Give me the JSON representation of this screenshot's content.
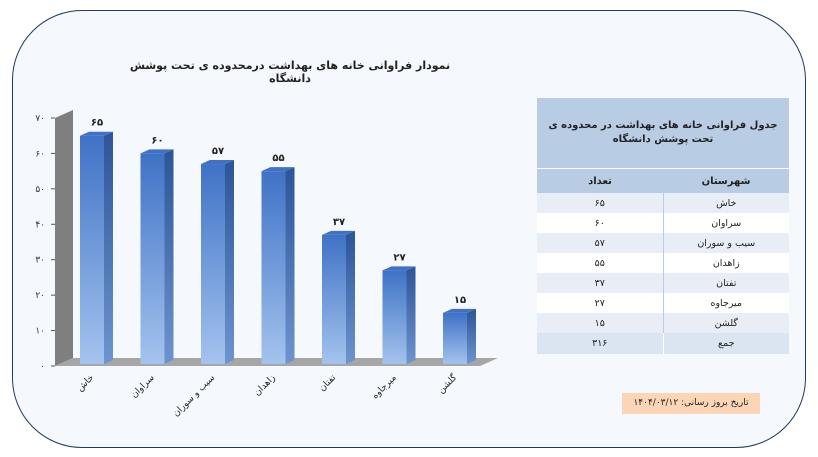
{
  "chart_data": {
    "type": "bar",
    "title": "نمودار فراوانی خانه های بهداشت درمحدوده ی تحت پوشش دانشگاه",
    "categories": [
      "خاش",
      "سراوان",
      "سیب و سوران",
      "زاهدان",
      "تفتان",
      "میرجاوه",
      "گلشن"
    ],
    "values": [
      65,
      60,
      57,
      55,
      37,
      27,
      15
    ],
    "value_labels": [
      "۶۵",
      "۶۰",
      "۵۷",
      "۵۵",
      "۳۷",
      "۲۷",
      "۱۵"
    ],
    "ylim": [
      0,
      70
    ],
    "yticks": [
      0,
      10,
      20,
      30,
      40,
      50,
      60,
      70
    ],
    "ytick_labels": [
      "۰",
      "۱۰",
      "۲۰",
      "۳۰",
      "۴۰",
      "۵۰",
      "۶۰",
      "۷۰"
    ],
    "grid": false,
    "colors": {
      "bar_light": "#a4c3ee",
      "bar_dark": "#3f72c6",
      "bar_side": "#2c5597",
      "floor": "#a6a6a6",
      "wall": "#7f7f7f"
    }
  },
  "table": {
    "caption": "جدول فراوانی خانه های بهداشت در محدوده ی تحت پوشش دانشگاه",
    "headers": {
      "city": "شهرستان",
      "count": "تعداد"
    },
    "rows": [
      {
        "city": "خاش",
        "count": "۶۵"
      },
      {
        "city": "سراوان",
        "count": "۶۰"
      },
      {
        "city": "سیب و سوران",
        "count": "۵۷"
      },
      {
        "city": "زاهدان",
        "count": "۵۵"
      },
      {
        "city": "تفتان",
        "count": "۳۷"
      },
      {
        "city": "میرجاوه",
        "count": "۲۷"
      },
      {
        "city": "گلشن",
        "count": "۱۵"
      }
    ],
    "total": {
      "label": "جمع",
      "count": "۳۱۶"
    }
  },
  "update_date": "تاریخ بروز رسانی: ۱۴۰۴/۰۳/۱۲"
}
